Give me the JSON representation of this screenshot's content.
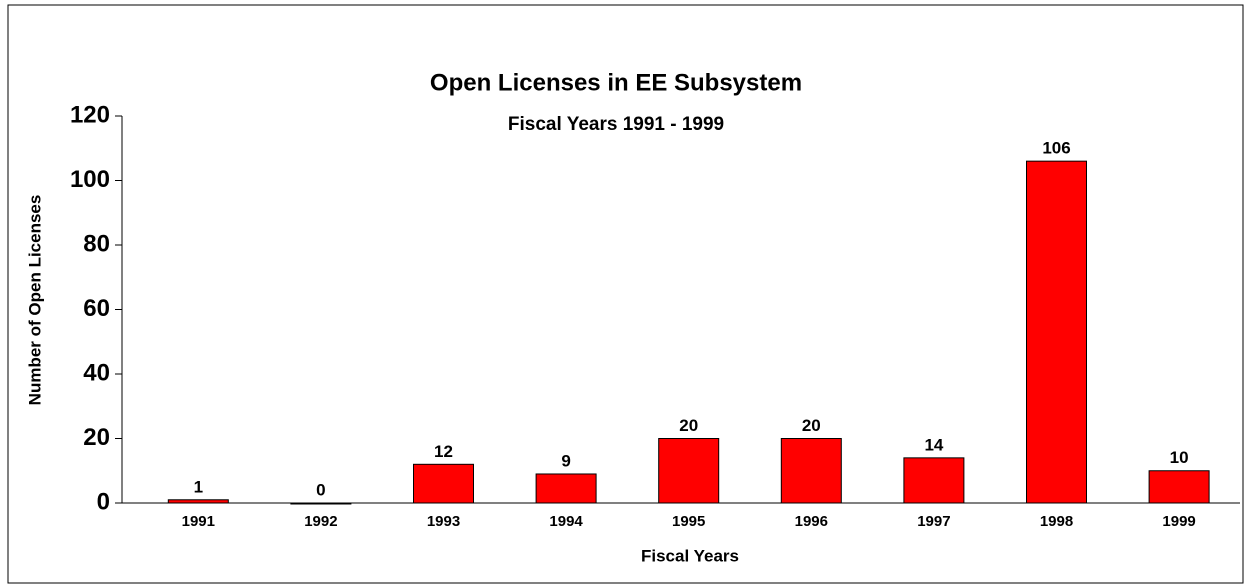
{
  "chart_data": {
    "type": "bar",
    "title": "Open Licenses in EE Subsystem",
    "subtitle": "Fiscal Years 1991 - 1999",
    "x_label": "Fiscal Years",
    "y_label": "Number of Open Licenses",
    "categories": [
      "1991",
      "1992",
      "1993",
      "1994",
      "1995",
      "1996",
      "1997",
      "1998",
      "1999"
    ],
    "values": [
      1,
      0,
      12,
      9,
      20,
      20,
      14,
      106,
      10
    ],
    "color": "#ff0000",
    "ylim": [
      0,
      120
    ],
    "yticks": [
      0,
      20,
      40,
      60,
      80,
      100,
      120
    ],
    "grid": false
  }
}
